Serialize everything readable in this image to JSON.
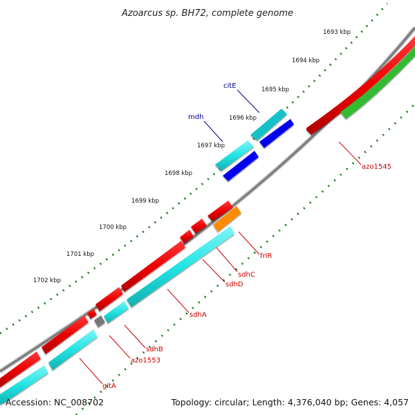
{
  "title": "Azoarcus sp. BH72, complete genome",
  "footer": {
    "accession": "Accession: NC_008702",
    "summary": "Topology: circular; Length: 4,376,040 bp; Genes: 4,057"
  },
  "ticks": [
    "1693 kbp",
    "1694 kbp",
    "1695 kbp",
    "1696 kbp",
    "1697 kbp",
    "1698 kbp",
    "1699 kbp",
    "1700 kbp",
    "1701 kbp",
    "1702 kbp"
  ],
  "gene_labels": [
    {
      "name": "citE",
      "color": "#00008b"
    },
    {
      "name": "mdh",
      "color": "#00008b"
    },
    {
      "name": "azo1545",
      "color": "#cc0000"
    },
    {
      "name": "frlR",
      "color": "#cc0000"
    },
    {
      "name": "sdhC",
      "color": "#cc0000"
    },
    {
      "name": "sdhD",
      "color": "#cc0000"
    },
    {
      "name": "sdhA",
      "color": "#cc0000"
    },
    {
      "name": "sdhB",
      "color": "#cc0000"
    },
    {
      "name": "azo1553",
      "color": "#cc0000"
    },
    {
      "name": "gltA",
      "color": "#cc0000"
    }
  ],
  "colors": {
    "backbone": "#8a8a8a",
    "forward_cds": "#ee0000",
    "reverse_cds": "#22dddd",
    "green_feature": "#33bb33",
    "orange_feature": "#ff8c00",
    "blue_feature": "#0000ee",
    "teal_feature": "#17b8c0",
    "grey_feature": "#777777",
    "tick_dots": "#1a7a1a"
  }
}
